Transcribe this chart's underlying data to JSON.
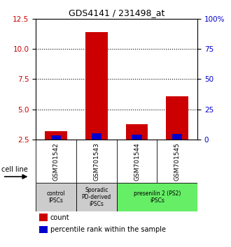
{
  "title": "GDS4141 / 231498_at",
  "samples": [
    "GSM701542",
    "GSM701543",
    "GSM701544",
    "GSM701545"
  ],
  "count_values": [
    3.2,
    11.4,
    3.8,
    6.1
  ],
  "percentile_values": [
    3.55,
    5.3,
    4.1,
    4.8
  ],
  "ylim_left": [
    2.5,
    12.5
  ],
  "ylim_right": [
    0,
    100
  ],
  "yticks_left": [
    2.5,
    5.0,
    7.5,
    10.0,
    12.5
  ],
  "yticks_right": [
    0,
    25,
    50,
    75,
    100
  ],
  "ytick_labels_right": [
    "0",
    "25",
    "50",
    "75",
    "100%"
  ],
  "bar_width": 0.55,
  "blue_bar_width": 0.25,
  "count_color": "#cc0000",
  "percentile_color": "#0000cc",
  "groups": [
    {
      "label": "control\nIPSCs",
      "start": 0,
      "end": 1,
      "color": "#cccccc"
    },
    {
      "label": "Sporadic\nPD-derived\niPSCs",
      "start": 1,
      "end": 2,
      "color": "#cccccc"
    },
    {
      "label": "presenilin 2 (PS2)\niPSCs",
      "start": 2,
      "end": 4,
      "color": "#66ee66"
    }
  ],
  "cell_line_label": "cell line",
  "legend_count": "count",
  "legend_percentile": "percentile rank within the sample",
  "background_color": "#ffffff",
  "sample_bg_color": "#cccccc",
  "axis_label_color_left": "#cc0000",
  "axis_label_color_right": "#0000cc"
}
